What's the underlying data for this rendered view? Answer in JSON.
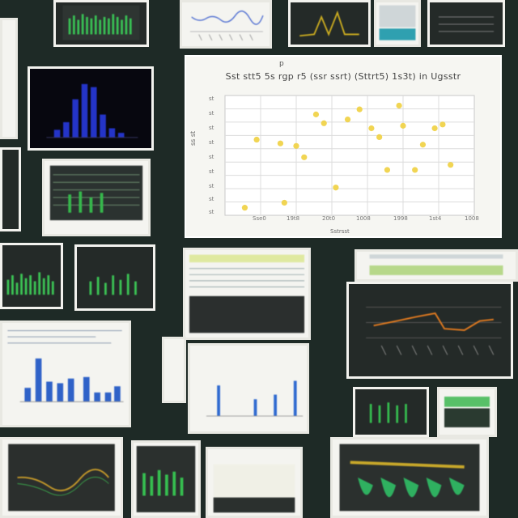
{
  "mosaic": {
    "background": "#1e2a26",
    "accent_green": "#2fbf4a",
    "accent_blue": "#2a3bd6",
    "accent_orange": "#e07a20",
    "point_yellow": "#f0d040"
  },
  "chart_data": {
    "type": "scatter",
    "title": "Sst stt5 5s rgp r5 (ssr ssrt) (Sttrt5) 1s3t) in Ugsstr",
    "subtitle": "p",
    "xlabel": "Sstrsst",
    "ylabel": "ss st",
    "x_ticks": [
      "Sse0",
      "19t8",
      "20t0",
      "1008",
      "1998",
      "1st4",
      "1008"
    ],
    "y_ticks": [
      "st",
      "st",
      "st",
      "st",
      "st",
      "st",
      "st",
      "st",
      "st"
    ],
    "grid": true,
    "points_x": [
      1.0,
      1.3,
      1.9,
      2.0,
      2.3,
      2.5,
      2.8,
      3.0,
      3.3,
      3.6,
      3.9,
      4.2,
      4.4,
      4.6,
      4.9,
      5.0,
      5.3,
      5.5,
      5.8,
      6.0,
      6.2
    ],
    "points_y": [
      0.6,
      6.0,
      5.7,
      1.0,
      5.5,
      4.6,
      8.0,
      7.3,
      2.2,
      7.6,
      8.4,
      6.9,
      6.2,
      3.6,
      8.7,
      7.1,
      3.6,
      5.6,
      6.9,
      7.2,
      4.0
    ]
  }
}
